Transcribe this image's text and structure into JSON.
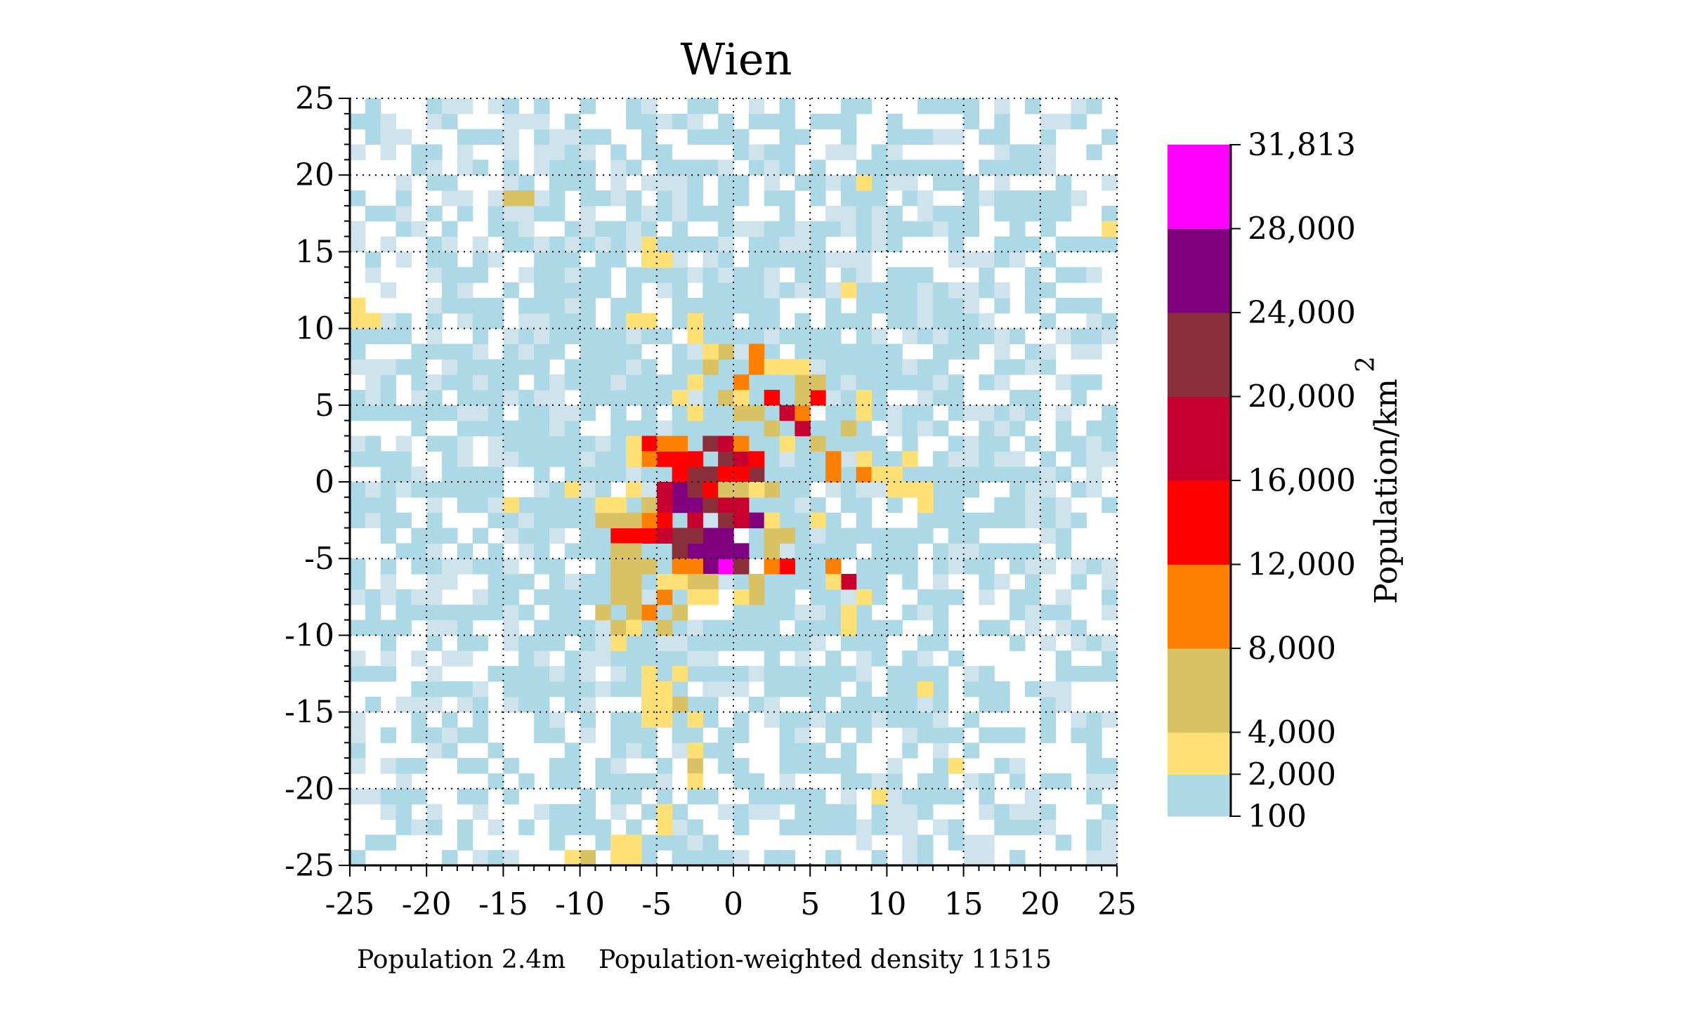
{
  "chart_data": {
    "type": "heatmap",
    "title": "Wien",
    "footer_population": "Population 2.4m",
    "footer_density": "Population-weighted density 11515",
    "xlabel": "",
    "ylabel": "",
    "xlim": [
      -25,
      25
    ],
    "ylim": [
      -25,
      25
    ],
    "x_ticks": [
      "-25",
      "-20",
      "-15",
      "-10",
      "-5",
      "0",
      "5",
      "10",
      "15",
      "20",
      "25"
    ],
    "y_ticks": [
      "25",
      "20",
      "15",
      "10",
      "5",
      "0",
      "-5",
      "-10",
      "-15",
      "-20",
      "-25"
    ],
    "grid": "dotted",
    "colorbar": {
      "label": "Population/km",
      "label_superscript": "2",
      "ticks": [
        "31,813",
        "28,000",
        "24,000",
        "20,000",
        "16,000",
        "12,000",
        "8,000",
        "4,000",
        "2,000",
        "100"
      ],
      "bins": [
        {
          "min": 100,
          "max": 2000,
          "color": "#add8e6"
        },
        {
          "min": 2000,
          "max": 4000,
          "color": "#ffe074"
        },
        {
          "min": 4000,
          "max": 8000,
          "color": "#d9c264"
        },
        {
          "min": 8000,
          "max": 12000,
          "color": "#ff8000"
        },
        {
          "min": 12000,
          "max": 16000,
          "color": "#ff0000"
        },
        {
          "min": 16000,
          "max": 20000,
          "color": "#c8002f"
        },
        {
          "min": 20000,
          "max": 24000,
          "color": "#8b2f3a"
        },
        {
          "min": 24000,
          "max": 28000,
          "color": "#800080"
        },
        {
          "min": 28000,
          "max": 31813,
          "color": "#ff00ff"
        }
      ],
      "light_color": "#cfe3ec"
    },
    "cell_size_km": 1,
    "dense_cells": [
      {
        "x": -0.5,
        "y": -5.5,
        "v": 31813
      },
      {
        "x": -3.5,
        "y": -0.5,
        "v": 26000
      },
      {
        "x": -3.5,
        "y": -1.5,
        "v": 26000
      },
      {
        "x": -2.5,
        "y": -1.5,
        "v": 26000
      },
      {
        "x": -1.5,
        "y": -3.5,
        "v": 26000
      },
      {
        "x": -1.5,
        "y": -4.5,
        "v": 26000
      },
      {
        "x": -2.5,
        "y": -4.5,
        "v": 26000
      },
      {
        "x": -0.5,
        "y": -3.5,
        "v": 26000
      },
      {
        "x": -1.5,
        "y": -5.5,
        "v": 26000
      },
      {
        "x": 1.5,
        "y": -2.5,
        "v": 26000
      },
      {
        "x": 0.5,
        "y": -4.5,
        "v": 26000
      },
      {
        "x": -0.5,
        "y": -4.5,
        "v": 26000
      },
      {
        "x": -2.5,
        "y": 0.5,
        "v": 22000
      },
      {
        "x": -1.5,
        "y": 0.5,
        "v": 22000
      },
      {
        "x": -1.5,
        "y": 2.5,
        "v": 22000
      },
      {
        "x": -0.5,
        "y": 1.5,
        "v": 22000
      },
      {
        "x": -2.5,
        "y": -0.5,
        "v": 22000
      },
      {
        "x": -1.5,
        "y": -1.5,
        "v": 22000
      },
      {
        "x": -3.5,
        "y": -3.5,
        "v": 22000
      },
      {
        "x": -3.5,
        "y": -4.5,
        "v": 22000
      },
      {
        "x": -2.5,
        "y": -3.5,
        "v": 22000
      },
      {
        "x": 0.5,
        "y": -5.5,
        "v": 22000
      },
      {
        "x": -0.5,
        "y": -2.5,
        "v": 22000
      },
      {
        "x": 1.5,
        "y": 0.5,
        "v": 22000
      },
      {
        "x": -0.5,
        "y": 2.5,
        "v": 18000
      },
      {
        "x": 0.5,
        "y": 1.5,
        "v": 18000
      },
      {
        "x": -4.5,
        "y": -0.5,
        "v": 18000
      },
      {
        "x": -4.5,
        "y": -1.5,
        "v": 18000
      },
      {
        "x": -2.5,
        "y": -2.5,
        "v": 18000
      },
      {
        "x": 0.5,
        "y": -1.5,
        "v": 18000
      },
      {
        "x": 0.5,
        "y": -2.5,
        "v": 18000
      },
      {
        "x": -4.5,
        "y": -3.5,
        "v": 18000
      },
      {
        "x": 7.5,
        "y": -6.5,
        "v": 18000
      },
      {
        "x": 3.5,
        "y": 4.5,
        "v": 18000
      },
      {
        "x": 4.5,
        "y": 3.5,
        "v": 18000
      },
      {
        "x": -0.5,
        "y": -1.5,
        "v": 18000
      },
      {
        "x": -5.5,
        "y": 2.5,
        "v": 14000
      },
      {
        "x": -4.5,
        "y": 1.5,
        "v": 14000
      },
      {
        "x": -3.5,
        "y": 0.5,
        "v": 14000
      },
      {
        "x": -2.5,
        "y": 1.5,
        "v": 14000
      },
      {
        "x": 0.5,
        "y": 0.5,
        "v": 14000
      },
      {
        "x": 1.5,
        "y": 1.5,
        "v": 14000
      },
      {
        "x": -1.5,
        "y": -0.5,
        "v": 14000
      },
      {
        "x": -4.5,
        "y": -2.5,
        "v": 14000
      },
      {
        "x": -7.5,
        "y": -3.5,
        "v": 14000
      },
      {
        "x": -6.5,
        "y": -3.5,
        "v": 14000
      },
      {
        "x": -5.5,
        "y": -3.5,
        "v": 14000
      },
      {
        "x": 2.5,
        "y": 5.5,
        "v": 14000
      },
      {
        "x": 5.5,
        "y": 5.5,
        "v": 14000
      },
      {
        "x": 3.5,
        "y": -5.5,
        "v": 14000
      },
      {
        "x": -3.5,
        "y": 1.5,
        "v": 14000
      },
      {
        "x": -0.5,
        "y": 0.5,
        "v": 14000
      },
      {
        "x": -4.5,
        "y": 2.5,
        "v": 10000
      },
      {
        "x": -5.5,
        "y": 1.5,
        "v": 10000
      },
      {
        "x": -3.5,
        "y": 2.5,
        "v": 10000
      },
      {
        "x": 1.5,
        "y": 8.5,
        "v": 10000
      },
      {
        "x": 1.5,
        "y": 7.5,
        "v": 10000
      },
      {
        "x": 0.5,
        "y": 6.5,
        "v": 10000
      },
      {
        "x": 4.5,
        "y": 4.5,
        "v": 10000
      },
      {
        "x": 6.5,
        "y": 1.5,
        "v": 10000
      },
      {
        "x": 6.5,
        "y": 0.5,
        "v": 10000
      },
      {
        "x": 8.5,
        "y": 0.5,
        "v": 10000
      },
      {
        "x": -5.5,
        "y": -2.5,
        "v": 10000
      },
      {
        "x": -3.5,
        "y": -5.5,
        "v": 10000
      },
      {
        "x": -4.5,
        "y": -7.5,
        "v": 10000
      },
      {
        "x": -5.5,
        "y": -8.5,
        "v": 10000
      },
      {
        "x": 6.5,
        "y": -5.5,
        "v": 10000
      },
      {
        "x": -2.5,
        "y": -5.5,
        "v": 10000
      },
      {
        "x": 0.5,
        "y": 2.5,
        "v": 10000
      },
      {
        "x": 2.5,
        "y": -5.5,
        "v": 10000
      },
      {
        "x": -1.5,
        "y": 7.5,
        "v": 6000
      },
      {
        "x": -0.5,
        "y": 8.5,
        "v": 6000
      },
      {
        "x": -0.5,
        "y": 5.5,
        "v": 6000
      },
      {
        "x": 0.5,
        "y": 4.5,
        "v": 6000
      },
      {
        "x": 1.5,
        "y": 4.5,
        "v": 6000
      },
      {
        "x": 2.5,
        "y": 3.5,
        "v": 6000
      },
      {
        "x": 4.5,
        "y": 5.5,
        "v": 6000
      },
      {
        "x": 4.5,
        "y": 6.5,
        "v": 6000
      },
      {
        "x": 5.5,
        "y": 6.5,
        "v": 6000
      },
      {
        "x": 5.5,
        "y": 2.5,
        "v": 6000
      },
      {
        "x": 7.5,
        "y": 3.5,
        "v": 6000
      },
      {
        "x": -0.5,
        "y": -0.5,
        "v": 6000
      },
      {
        "x": 0.5,
        "y": -0.5,
        "v": 6000
      },
      {
        "x": 2.5,
        "y": -0.5,
        "v": 6000
      },
      {
        "x": 2.5,
        "y": -3.5,
        "v": 6000
      },
      {
        "x": -8.5,
        "y": -2.5,
        "v": 6000
      },
      {
        "x": -7.5,
        "y": -2.5,
        "v": 6000
      },
      {
        "x": -6.5,
        "y": -2.5,
        "v": 6000
      },
      {
        "x": -7.5,
        "y": -4.5,
        "v": 6000
      },
      {
        "x": -6.5,
        "y": -4.5,
        "v": 6000
      },
      {
        "x": -7.5,
        "y": -5.5,
        "v": 6000
      },
      {
        "x": -6.5,
        "y": -5.5,
        "v": 6000
      },
      {
        "x": -5.5,
        "y": -5.5,
        "v": 6000
      },
      {
        "x": -7.5,
        "y": -6.5,
        "v": 6000
      },
      {
        "x": -6.5,
        "y": -6.5,
        "v": 6000
      },
      {
        "x": -2.5,
        "y": -6.5,
        "v": 6000
      },
      {
        "x": -1.5,
        "y": -6.5,
        "v": 6000
      },
      {
        "x": 1.5,
        "y": -6.5,
        "v": 6000
      },
      {
        "x": -7.5,
        "y": -7.5,
        "v": 6000
      },
      {
        "x": -6.5,
        "y": -7.5,
        "v": 6000
      },
      {
        "x": 1.5,
        "y": -7.5,
        "v": 6000
      },
      {
        "x": -8.5,
        "y": -8.5,
        "v": 6000
      },
      {
        "x": -6.5,
        "y": -8.5,
        "v": 6000
      },
      {
        "x": -3.5,
        "y": -8.5,
        "v": 6000
      },
      {
        "x": -7.5,
        "y": -9.5,
        "v": 6000
      },
      {
        "x": -4.5,
        "y": -9.5,
        "v": 6000
      },
      {
        "x": -3.5,
        "y": -14.5,
        "v": 6000
      },
      {
        "x": -14.5,
        "y": 18.5,
        "v": 6000
      },
      {
        "x": -13.5,
        "y": 18.5,
        "v": 6000
      },
      {
        "x": -2.5,
        "y": -18.5,
        "v": 6000
      },
      {
        "x": -9.5,
        "y": -24.5,
        "v": 6000
      },
      {
        "x": 3.5,
        "y": -3.5,
        "v": 6000
      },
      {
        "x": 2.5,
        "y": -4.5,
        "v": 6000
      },
      {
        "x": -5.5,
        "y": -1.5,
        "v": 6000
      },
      {
        "x": -2.5,
        "y": 9.5,
        "v": 3000
      },
      {
        "x": -1.5,
        "y": 8.5,
        "v": 3000
      },
      {
        "x": -2.5,
        "y": 6.5,
        "v": 3000
      },
      {
        "x": -3.5,
        "y": 5.5,
        "v": 3000
      },
      {
        "x": -2.5,
        "y": 4.5,
        "v": 3000
      },
      {
        "x": 2.5,
        "y": 7.5,
        "v": 3000
      },
      {
        "x": 3.5,
        "y": 7.5,
        "v": 3000
      },
      {
        "x": 4.5,
        "y": 7.5,
        "v": 3000
      },
      {
        "x": 0.5,
        "y": 5.5,
        "v": 3000
      },
      {
        "x": 3.5,
        "y": 2.5,
        "v": 3000
      },
      {
        "x": 8.5,
        "y": 1.5,
        "v": 3000
      },
      {
        "x": 9.5,
        "y": 0.5,
        "v": 3000
      },
      {
        "x": 10.5,
        "y": 0.5,
        "v": 3000
      },
      {
        "x": 10.5,
        "y": -0.5,
        "v": 3000
      },
      {
        "x": 11.5,
        "y": -0.5,
        "v": 3000
      },
      {
        "x": 12.5,
        "y": -0.5,
        "v": 3000
      },
      {
        "x": 11.5,
        "y": 1.5,
        "v": 3000
      },
      {
        "x": 12.5,
        "y": -1.5,
        "v": 3000
      },
      {
        "x": -6.5,
        "y": 2.5,
        "v": 3000
      },
      {
        "x": -6.5,
        "y": 1.5,
        "v": 3000
      },
      {
        "x": -6.5,
        "y": -0.5,
        "v": 3000
      },
      {
        "x": -7.5,
        "y": -1.5,
        "v": 3000
      },
      {
        "x": -8.5,
        "y": -1.5,
        "v": 3000
      },
      {
        "x": -10.5,
        "y": -0.5,
        "v": 3000
      },
      {
        "x": -14.5,
        "y": -1.5,
        "v": 3000
      },
      {
        "x": -3.5,
        "y": -6.5,
        "v": 3000
      },
      {
        "x": -4.5,
        "y": -6.5,
        "v": 3000
      },
      {
        "x": -2.5,
        "y": -7.5,
        "v": 3000
      },
      {
        "x": -1.5,
        "y": -7.5,
        "v": 3000
      },
      {
        "x": 0.5,
        "y": -7.5,
        "v": 3000
      },
      {
        "x": 6.5,
        "y": -6.5,
        "v": 3000
      },
      {
        "x": 8.5,
        "y": -7.5,
        "v": 3000
      },
      {
        "x": 7.5,
        "y": -8.5,
        "v": 3000
      },
      {
        "x": 7.5,
        "y": -9.5,
        "v": 3000
      },
      {
        "x": -7.5,
        "y": -10.5,
        "v": 3000
      },
      {
        "x": -6.5,
        "y": -9.5,
        "v": 3000
      },
      {
        "x": -5.5,
        "y": -12.5,
        "v": 3000
      },
      {
        "x": -5.5,
        "y": -13.5,
        "v": 3000
      },
      {
        "x": -4.5,
        "y": -13.5,
        "v": 3000
      },
      {
        "x": -5.5,
        "y": -14.5,
        "v": 3000
      },
      {
        "x": -4.5,
        "y": -14.5,
        "v": 3000
      },
      {
        "x": -5.5,
        "y": -15.5,
        "v": 3000
      },
      {
        "x": -4.5,
        "y": -15.5,
        "v": 3000
      },
      {
        "x": -2.5,
        "y": -15.5,
        "v": 3000
      },
      {
        "x": -3.5,
        "y": -12.5,
        "v": 3000
      },
      {
        "x": -2.5,
        "y": -17.5,
        "v": 3000
      },
      {
        "x": -2.5,
        "y": -19.5,
        "v": 3000
      },
      {
        "x": -4.5,
        "y": -21.5,
        "v": 3000
      },
      {
        "x": -4.5,
        "y": -22.5,
        "v": 3000
      },
      {
        "x": -7.5,
        "y": -23.5,
        "v": 3000
      },
      {
        "x": -6.5,
        "y": -23.5,
        "v": 3000
      },
      {
        "x": -7.5,
        "y": -24.5,
        "v": 3000
      },
      {
        "x": -6.5,
        "y": -24.5,
        "v": 3000
      },
      {
        "x": -10.5,
        "y": -24.5,
        "v": 3000
      },
      {
        "x": -24.5,
        "y": 11.5,
        "v": 3000
      },
      {
        "x": -24.5,
        "y": 10.5,
        "v": 3000
      },
      {
        "x": -23.5,
        "y": 10.5,
        "v": 3000
      },
      {
        "x": -5.5,
        "y": 15.5,
        "v": 3000
      },
      {
        "x": -5.5,
        "y": 14.5,
        "v": 3000
      },
      {
        "x": -4.5,
        "y": 14.5,
        "v": 3000
      },
      {
        "x": -6.5,
        "y": 10.5,
        "v": 3000
      },
      {
        "x": -5.5,
        "y": 10.5,
        "v": 3000
      },
      {
        "x": -2.5,
        "y": 10.5,
        "v": 3000
      },
      {
        "x": 7.5,
        "y": 12.5,
        "v": 3000
      },
      {
        "x": 8.5,
        "y": 19.5,
        "v": 3000
      },
      {
        "x": 24.5,
        "y": 16.5,
        "v": 3000
      },
      {
        "x": 5.5,
        "y": -2.5,
        "v": 3000
      },
      {
        "x": 8.5,
        "y": 4.5,
        "v": 3000
      },
      {
        "x": 8.5,
        "y": 5.5,
        "v": 3000
      },
      {
        "x": 12.5,
        "y": -13.5,
        "v": 3000
      },
      {
        "x": 14.5,
        "y": -18.5,
        "v": 3000
      },
      {
        "x": 9.5,
        "y": -20.5,
        "v": 3000
      },
      {
        "x": 2.5,
        "y": -2.5,
        "v": 3000
      },
      {
        "x": 1.5,
        "y": -0.5,
        "v": 3000
      }
    ]
  }
}
